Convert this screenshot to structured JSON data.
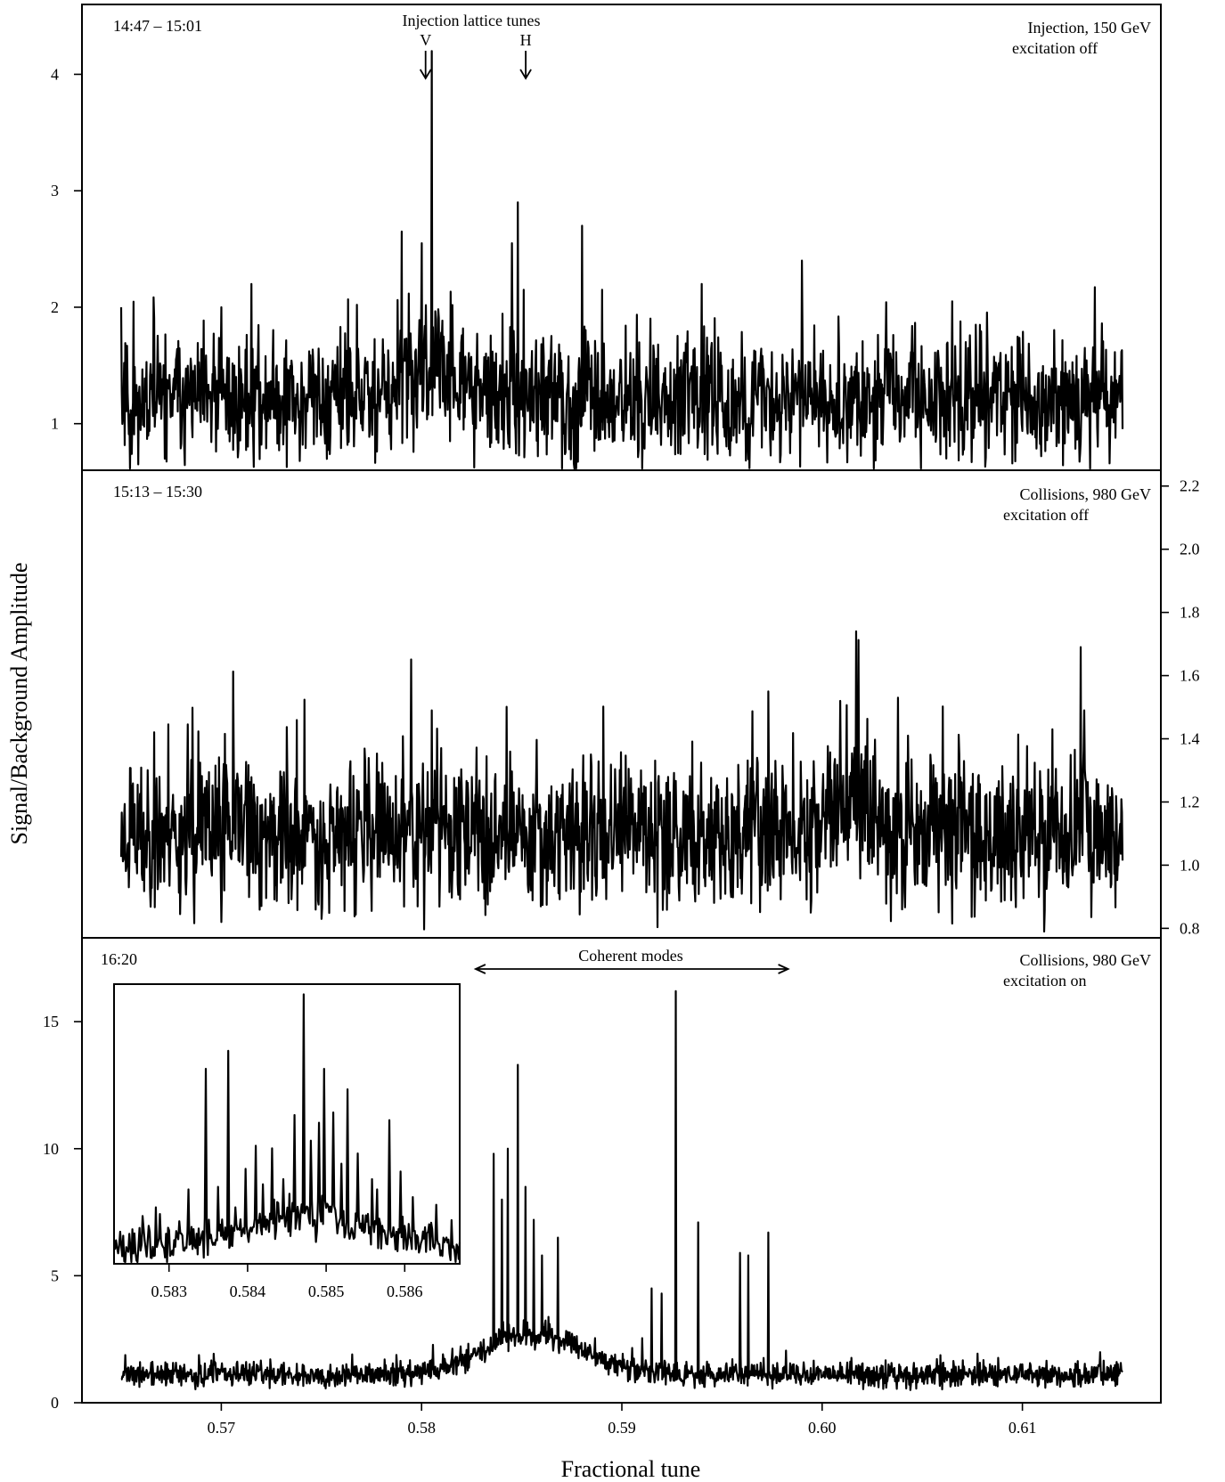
{
  "chart_data": {
    "type": "line",
    "xlabel": "Fractional tune",
    "ylabel": "Signal/Background Amplitude",
    "xlim": [
      0.565,
      0.615
    ],
    "x_ticks": [
      "0.57",
      "0.58",
      "0.59",
      "0.60",
      "0.61"
    ],
    "x_tick_values": [
      0.57,
      0.58,
      0.59,
      0.6,
      0.61
    ],
    "grid": false,
    "panels": [
      {
        "time": "14:47 – 15:01",
        "condition_line1": "Injection, 150 GeV",
        "condition_line2": "excitation off",
        "ylim": [
          0.6,
          4.6
        ],
        "y_axis_side": "left",
        "y_ticks": [
          "1",
          "2",
          "3",
          "4"
        ],
        "y_tick_values": [
          1,
          2,
          3,
          4
        ],
        "baseline": 1.2,
        "noise_amplitude": 0.38,
        "bump": {
          "center": 0.5808,
          "width": 0.0018,
          "height": 0.25
        },
        "peaks": [
          {
            "x": 0.5805,
            "y": 4.2
          },
          {
            "x": 0.579,
            "y": 2.65
          },
          {
            "x": 0.58,
            "y": 2.55
          },
          {
            "x": 0.5848,
            "y": 2.9
          },
          {
            "x": 0.5845,
            "y": 2.55
          },
          {
            "x": 0.5851,
            "y": 2.15
          },
          {
            "x": 0.588,
            "y": 2.7
          },
          {
            "x": 0.599,
            "y": 2.4
          },
          {
            "x": 0.5715,
            "y": 2.2
          },
          {
            "x": 0.594,
            "y": 2.2
          },
          {
            "x": 0.589,
            "y": 2.15
          },
          {
            "x": 0.6065,
            "y": 2.05
          },
          {
            "x": 0.57,
            "y": 2.0
          },
          {
            "x": 0.5575,
            "y": 2.0
          }
        ],
        "annotation_title": "Injection lattice tunes",
        "arrows": [
          {
            "label": "V",
            "x": 0.5802
          },
          {
            "label": "H",
            "x": 0.5852
          }
        ]
      },
      {
        "time": "15:13 – 15:30",
        "condition_line1": "Collisions, 980 GeV",
        "condition_line2": "excitation off",
        "ylim": [
          0.77,
          2.25
        ],
        "y_axis_side": "right",
        "y_ticks": [
          "0.8",
          "1.0",
          "1.2",
          "1.4",
          "1.6",
          "1.8",
          "2.0",
          "2.2"
        ],
        "y_tick_values": [
          0.8,
          1.0,
          1.2,
          1.4,
          1.6,
          1.8,
          2.0,
          2.2
        ],
        "baseline": 1.1,
        "noise_amplitude": 0.17,
        "bump": {
          "center": 0.6015,
          "width": 0.002,
          "height": 0.1
        },
        "peaks": [
          {
            "x": 0.6017,
            "y": 1.74
          },
          {
            "x": 0.6129,
            "y": 1.69
          },
          {
            "x": 0.5973,
            "y": 1.55
          },
          {
            "x": 0.6009,
            "y": 1.52
          },
          {
            "x": 0.6131,
            "y": 1.49
          },
          {
            "x": 0.5805,
            "y": 1.49
          },
          {
            "x": 0.6038,
            "y": 1.53
          },
          {
            "x": 0.6115,
            "y": 1.43
          },
          {
            "x": 0.604,
            "y": 0.86
          },
          {
            "x": 0.6111,
            "y": 0.79
          },
          {
            "x": 0.57,
            "y": 0.82
          },
          {
            "x": 0.575,
            "y": 0.83
          }
        ]
      },
      {
        "time": "16:20",
        "condition_line1": "Collisions, 980 GeV",
        "condition_line2": "excitation on",
        "ylim": [
          0,
          18.3
        ],
        "y_axis_side": "left",
        "y_ticks": [
          "0",
          "5",
          "10",
          "15"
        ],
        "y_tick_values": [
          0,
          5,
          10,
          15
        ],
        "baseline": 1.1,
        "noise_amplitude": 0.35,
        "bump": {
          "center": 0.5855,
          "width": 0.0035,
          "height": 1.6
        },
        "peaks": [
          {
            "x": 0.5927,
            "y": 16.2
          },
          {
            "x": 0.5848,
            "y": 13.3
          },
          {
            "x": 0.5836,
            "y": 9.8
          },
          {
            "x": 0.5843,
            "y": 10.0
          },
          {
            "x": 0.5852,
            "y": 8.5
          },
          {
            "x": 0.584,
            "y": 8.0
          },
          {
            "x": 0.5856,
            "y": 7.2
          },
          {
            "x": 0.5938,
            "y": 7.1
          },
          {
            "x": 0.5973,
            "y": 6.7
          },
          {
            "x": 0.5959,
            "y": 5.9
          },
          {
            "x": 0.5868,
            "y": 6.5
          },
          {
            "x": 0.5963,
            "y": 5.8
          },
          {
            "x": 0.586,
            "y": 5.8
          },
          {
            "x": 0.592,
            "y": 4.3
          },
          {
            "x": 0.5915,
            "y": 4.5
          }
        ],
        "annotation": "Coherent modes",
        "annotation_range": [
          0.5827,
          0.5983
        ],
        "inset": {
          "xlim": [
            0.5823,
            0.5867
          ],
          "ylim": [
            5.7,
            16.6
          ],
          "x_ticks": [
            "0.583",
            "0.584",
            "0.585",
            "0.586"
          ],
          "x_tick_values": [
            0.583,
            0.584,
            0.585,
            0.586
          ],
          "baseline": 6.3,
          "peaks": [
            {
              "x": 0.58471,
              "y": 16.2
            },
            {
              "x": 0.58375,
              "y": 14.0
            },
            {
              "x": 0.58347,
              "y": 13.3
            },
            {
              "x": 0.58498,
              "y": 13.3
            },
            {
              "x": 0.58527,
              "y": 12.5
            },
            {
              "x": 0.58509,
              "y": 11.6
            },
            {
              "x": 0.5858,
              "y": 11.3
            },
            {
              "x": 0.5846,
              "y": 11.5
            },
            {
              "x": 0.58491,
              "y": 11.2
            },
            {
              "x": 0.58431,
              "y": 10.2
            },
            {
              "x": 0.5854,
              "y": 10.0
            },
            {
              "x": 0.5841,
              "y": 10.3
            },
            {
              "x": 0.5848,
              "y": 10.5
            },
            {
              "x": 0.58397,
              "y": 9.4
            },
            {
              "x": 0.5852,
              "y": 9.6
            },
            {
              "x": 0.58445,
              "y": 9.0
            },
            {
              "x": 0.58558,
              "y": 9.0
            },
            {
              "x": 0.58595,
              "y": 9.3
            },
            {
              "x": 0.58325,
              "y": 8.6
            },
            {
              "x": 0.58283,
              "y": 7.9
            },
            {
              "x": 0.58362,
              "y": 8.7
            },
            {
              "x": 0.5842,
              "y": 8.8
            },
            {
              "x": 0.5861,
              "y": 8.3
            },
            {
              "x": 0.5864,
              "y": 8.0
            },
            {
              "x": 0.58565,
              "y": 8.6
            },
            {
              "x": 0.58385,
              "y": 7.9
            },
            {
              "x": 0.58345,
              "y": 7.5
            },
            {
              "x": 0.5866,
              "y": 7.4
            },
            {
              "x": 0.58262,
              "y": 7.1
            },
            {
              "x": 0.583,
              "y": 7.0
            }
          ]
        }
      }
    ]
  }
}
